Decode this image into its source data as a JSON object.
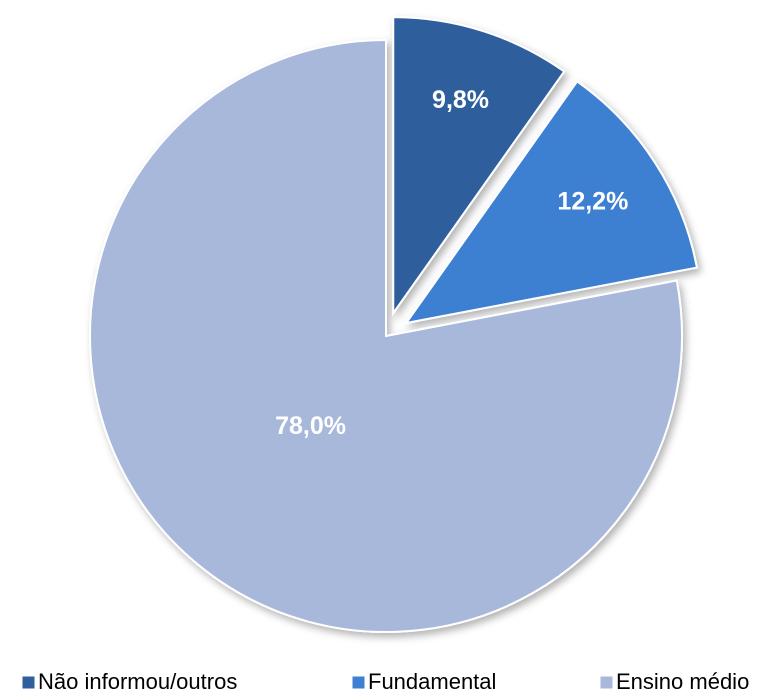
{
  "chart_data": {
    "type": "pie",
    "categories": [
      "Não informou/outros",
      "Fundamental",
      "Ensino médio"
    ],
    "values": [
      9.8,
      12.2,
      78.0
    ],
    "value_labels": [
      "9,8%",
      "12,2%",
      "78,0%"
    ],
    "colors": [
      "#2f5f9c",
      "#3e80d2",
      "#a7b8db"
    ],
    "legend": "bottom"
  }
}
